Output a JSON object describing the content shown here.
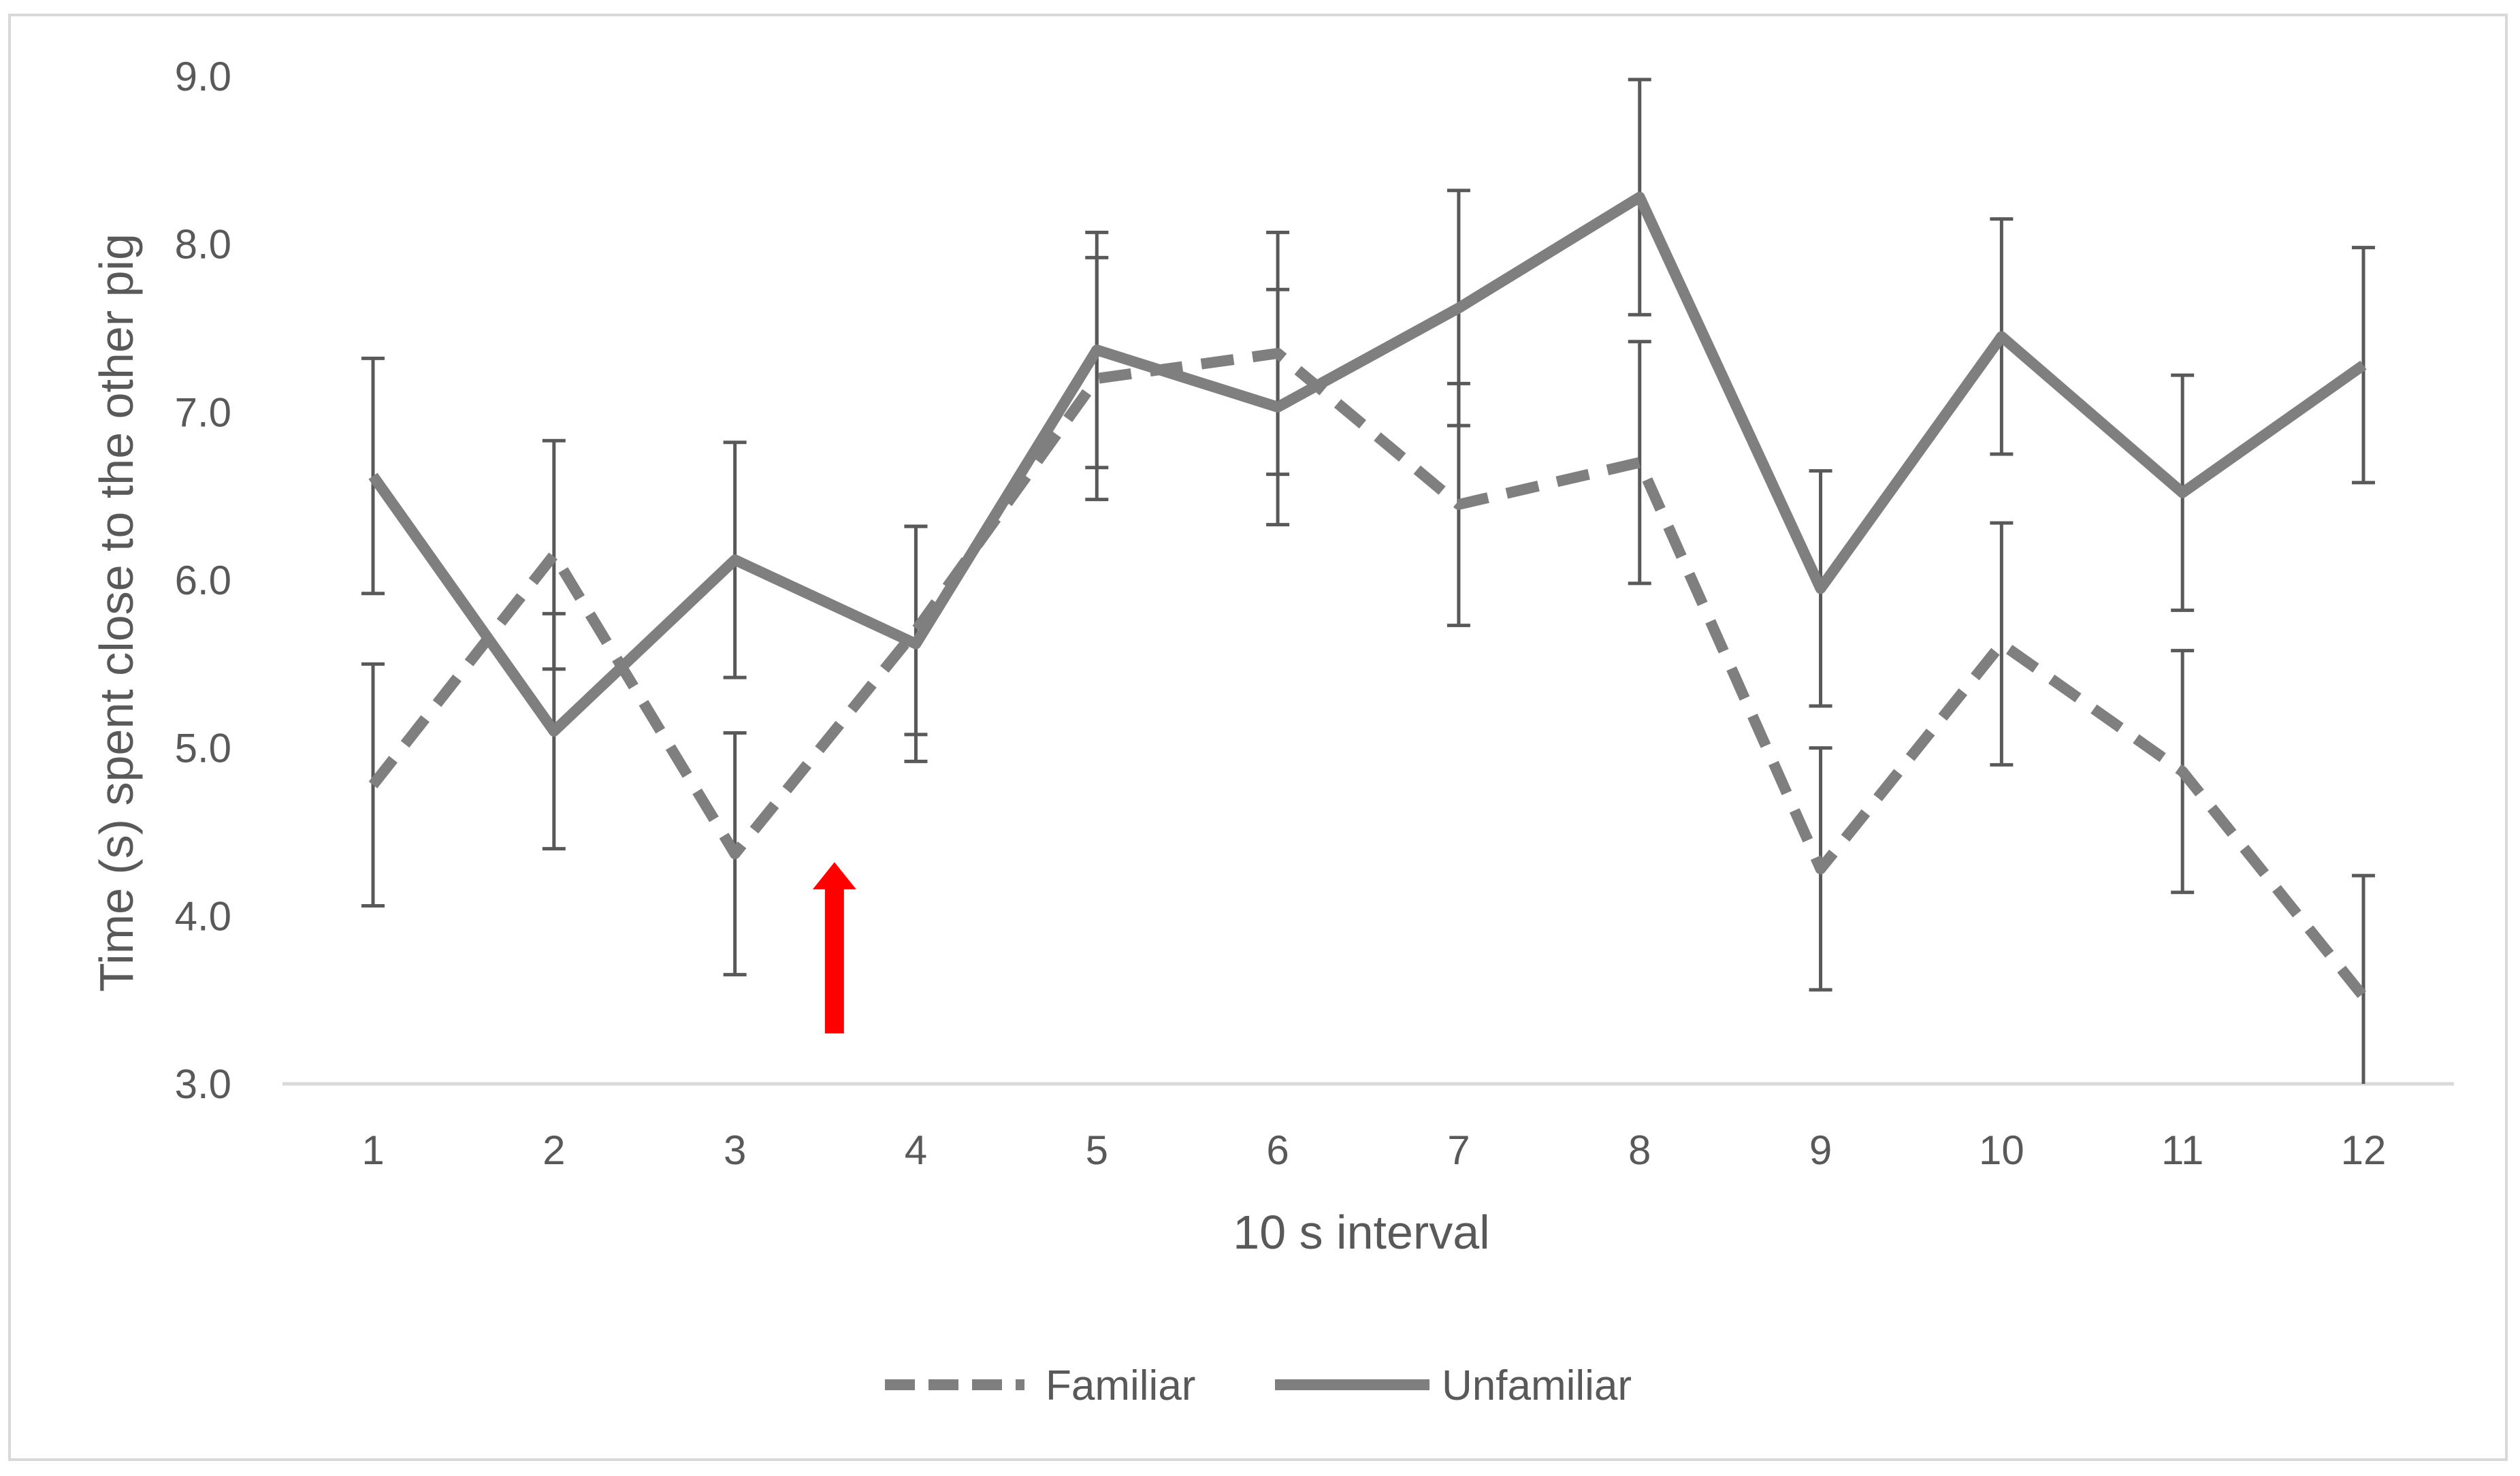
{
  "chart_data": {
    "type": "line",
    "title": "",
    "xlabel": "10 s interval",
    "ylabel": "Time (s) spent close to the other pig",
    "categories": [
      "1",
      "2",
      "3",
      "4",
      "5",
      "6",
      "7",
      "8",
      "9",
      "10",
      "11",
      "12"
    ],
    "ylim": [
      3.0,
      9.0
    ],
    "yticks": [
      "3.0",
      "4.0",
      "5.0",
      "6.0",
      "7.0",
      "8.0",
      "9.0"
    ],
    "grid": false,
    "legend_position": "bottom",
    "series": [
      {
        "name": "Familiar",
        "style": "dashed",
        "color": "#7f7f7f",
        "values": [
          4.78,
          6.15,
          4.37,
          5.7,
          7.2,
          7.35,
          6.45,
          6.7,
          4.28,
          5.62,
          4.86,
          3.52
        ],
        "error": [
          0.72,
          0.68,
          0.72,
          0.62,
          0.72,
          0.72,
          0.72,
          0.72,
          0.72,
          0.72,
          0.72,
          0.72
        ]
      },
      {
        "name": "Unfamiliar",
        "style": "solid",
        "color": "#7f7f7f",
        "values": [
          6.62,
          5.1,
          6.12,
          5.62,
          7.37,
          7.03,
          7.62,
          8.28,
          5.95,
          7.45,
          6.52,
          7.28
        ],
        "error": [
          0.7,
          0.7,
          0.7,
          0.7,
          0.7,
          0.7,
          0.7,
          0.7,
          0.7,
          0.7,
          0.7,
          0.7
        ]
      }
    ],
    "annotations": [
      {
        "type": "arrow",
        "direction": "up",
        "color": "#ff0000",
        "between_categories": [
          "3",
          "4"
        ],
        "position": 3.55,
        "y_from": 3.3,
        "y_to": 4.32
      }
    ]
  }
}
